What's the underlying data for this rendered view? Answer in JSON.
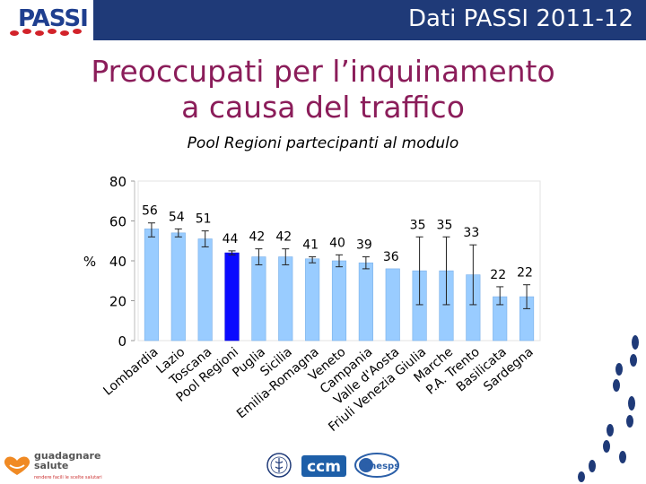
{
  "header": {
    "logo": "PASSI",
    "title": "Dati PASSI 2011-12"
  },
  "title_line1": "Preoccupati per l’inquinamento",
  "title_line2": "a causa del traffico",
  "subtitle": "Pool Regioni partecipanti al modulo",
  "footer": {
    "logo1_line1": "guadagnare",
    "logo1_line2": "salute",
    "logo1_tagline": "rendere facili le scelte salutari",
    "logo2": "ccm",
    "logo3": "Cnesps"
  },
  "colors": {
    "bar": "#99ccff",
    "bar_highlight": "#0a0aff",
    "title": "#8b1d5a",
    "header": "#1f3a78"
  },
  "chart_data": {
    "type": "bar",
    "ylabel": "%",
    "ylim": [
      0,
      80
    ],
    "yticks": [
      0,
      20,
      40,
      60,
      80
    ],
    "categories": [
      "Lombardia",
      "Lazio",
      "Toscana",
      "Pool Regioni",
      "Puglia",
      "Sicilia",
      "Emilia-Romagna",
      "Veneto",
      "Campania",
      "Valle d'Aosta",
      "Friuli Venezia Giulia",
      "Marche",
      "P.A. Trento",
      "Basilicata",
      "Sardegna"
    ],
    "values": [
      56,
      54,
      51,
      44,
      42,
      42,
      41,
      40,
      39,
      36,
      35,
      35,
      33,
      22,
      22
    ],
    "ci_low": [
      52,
      52,
      47,
      43,
      38,
      38,
      39,
      37,
      36,
      36,
      18,
      18,
      18,
      18,
      16
    ],
    "ci_high": [
      59,
      56,
      55,
      45,
      46,
      46,
      42,
      43,
      42,
      36,
      52,
      52,
      48,
      27,
      28
    ],
    "highlight": "Pool Regioni",
    "grid": false
  }
}
